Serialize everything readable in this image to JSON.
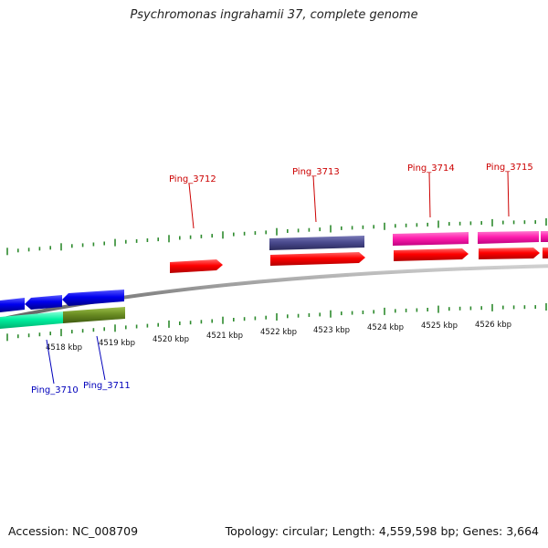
{
  "header": {
    "title": "Psychromonas ingrahamii 37, complete genome"
  },
  "footer": {
    "accession": "Accession: NC_008709",
    "topology": "Topology: circular; Length: 4,559,598 bp; Genes: 3,664"
  },
  "scale": {
    "kbp_labels": [
      "4518 kbp",
      "4519 kbp",
      "4520 kbp",
      "4521 kbp",
      "4522 kbp",
      "4523 kbp",
      "4524 kbp",
      "4525 kbp",
      "4526 kbp"
    ]
  },
  "genes": [
    {
      "label": "Ping_3710",
      "strand": "reverse",
      "color": "#0000bb"
    },
    {
      "label": "Ping_3711",
      "strand": "reverse",
      "color": "#0000bb"
    },
    {
      "label": "Ping_3712",
      "strand": "forward",
      "color": "#cc0000"
    },
    {
      "label": "Ping_3713",
      "strand": "forward",
      "color": "#cc0000"
    },
    {
      "label": "Ping_3714",
      "strand": "forward",
      "color": "#cc0000"
    },
    {
      "label": "Ping_3715",
      "strand": "forward",
      "color": "#cc0000"
    }
  ],
  "colors": {
    "forward_cds": "#ff0000",
    "reverse_cds": "#0000ee",
    "tick": "#2e8b2e",
    "backbone": "#888888",
    "purple_feature": "#4b4b8f",
    "magenta_feature": "#ff1fae",
    "cyan_feature": "#00f0a0",
    "olive_feature": "#6b8e23"
  }
}
